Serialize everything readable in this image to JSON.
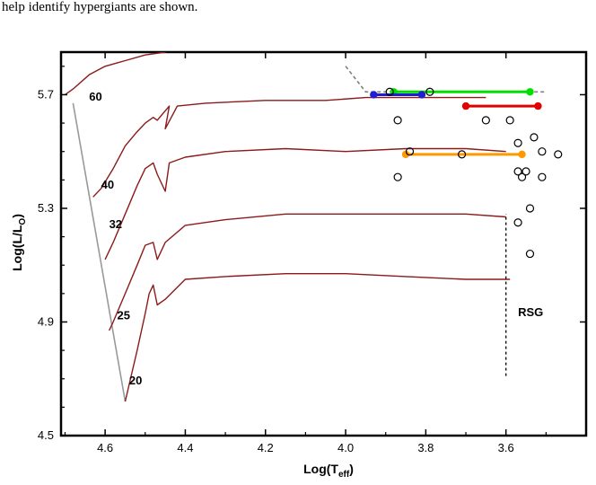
{
  "caption": "help identify hypergiants are shown.",
  "chart_data": {
    "type": "line",
    "title": "",
    "xlabel_main": "Log(T",
    "xlabel_sub": "eff",
    "xlabel_end": ")",
    "ylabel_main": "Log(L/L",
    "ylabel_sub": "O",
    "ylabel_end": ")",
    "xlim": [
      4.71,
      3.4
    ],
    "ylim": [
      4.5,
      5.85
    ],
    "x_ticks": [
      4.6,
      4.4,
      4.2,
      4.0,
      3.8,
      3.6
    ],
    "x_tick_labels": [
      "4.6",
      "4.4",
      "4.2",
      "4.0",
      "3.8",
      "3.6"
    ],
    "y_ticks": [
      4.5,
      4.9,
      5.3,
      5.7
    ],
    "y_tick_labels": [
      "4.5",
      "4.9",
      "5.3",
      "5.7"
    ],
    "track_color": "#8b1a1a",
    "zams_color": "#999999",
    "tracks": [
      {
        "mass_label": "60",
        "label_at": [
          4.64,
          5.68
        ],
        "points": [
          [
            4.7,
            5.7
          ],
          [
            4.68,
            5.72
          ],
          [
            4.64,
            5.77
          ],
          [
            4.6,
            5.8
          ],
          [
            4.55,
            5.82
          ],
          [
            4.5,
            5.84
          ],
          [
            4.45,
            5.85
          ],
          [
            4.4,
            5.87
          ],
          [
            4.39,
            5.89
          ],
          [
            4.35,
            5.88
          ],
          [
            4.25,
            5.87
          ],
          [
            4.15,
            5.86
          ],
          [
            4.08,
            5.865
          ]
        ]
      },
      {
        "mass_label": "40",
        "label_at": [
          4.61,
          5.37
        ],
        "points": [
          [
            4.63,
            5.34
          ],
          [
            4.61,
            5.37
          ],
          [
            4.58,
            5.44
          ],
          [
            4.55,
            5.52
          ],
          [
            4.52,
            5.57
          ],
          [
            4.5,
            5.6
          ],
          [
            4.48,
            5.62
          ],
          [
            4.47,
            5.61
          ],
          [
            4.44,
            5.66
          ],
          [
            4.45,
            5.58
          ],
          [
            4.42,
            5.66
          ],
          [
            4.35,
            5.67
          ],
          [
            4.2,
            5.68
          ],
          [
            4.05,
            5.68
          ],
          [
            3.95,
            5.69
          ],
          [
            3.85,
            5.69
          ],
          [
            3.7,
            5.69
          ],
          [
            3.65,
            5.69
          ]
        ]
      },
      {
        "mass_label": "32",
        "label_at": [
          4.59,
          5.23
        ],
        "points": [
          [
            4.6,
            5.12
          ],
          [
            4.58,
            5.18
          ],
          [
            4.55,
            5.28
          ],
          [
            4.52,
            5.38
          ],
          [
            4.5,
            5.44
          ],
          [
            4.48,
            5.46
          ],
          [
            4.47,
            5.42
          ],
          [
            4.45,
            5.36
          ],
          [
            4.44,
            5.46
          ],
          [
            4.4,
            5.48
          ],
          [
            4.3,
            5.5
          ],
          [
            4.15,
            5.51
          ],
          [
            4.0,
            5.5
          ],
          [
            3.85,
            5.51
          ],
          [
            3.7,
            5.51
          ],
          [
            3.6,
            5.5
          ]
        ]
      },
      {
        "mass_label": "25",
        "label_at": [
          4.57,
          4.91
        ],
        "points": [
          [
            4.59,
            4.87
          ],
          [
            4.58,
            4.9
          ],
          [
            4.55,
            5.0
          ],
          [
            4.52,
            5.1
          ],
          [
            4.5,
            5.17
          ],
          [
            4.48,
            5.18
          ],
          [
            4.47,
            5.12
          ],
          [
            4.45,
            5.18
          ],
          [
            4.4,
            5.24
          ],
          [
            4.3,
            5.26
          ],
          [
            4.15,
            5.28
          ],
          [
            4.0,
            5.28
          ],
          [
            3.85,
            5.28
          ],
          [
            3.7,
            5.28
          ],
          [
            3.6,
            5.27
          ]
        ]
      },
      {
        "mass_label": "20",
        "label_at": [
          4.54,
          4.68
        ],
        "points": [
          [
            4.55,
            4.62
          ],
          [
            4.54,
            4.68
          ],
          [
            4.52,
            4.8
          ],
          [
            4.5,
            4.93
          ],
          [
            4.49,
            5.0
          ],
          [
            4.48,
            5.03
          ],
          [
            4.47,
            4.96
          ],
          [
            4.45,
            4.98
          ],
          [
            4.4,
            5.05
          ],
          [
            4.3,
            5.06
          ],
          [
            4.15,
            5.07
          ],
          [
            4.0,
            5.07
          ],
          [
            3.85,
            5.06
          ],
          [
            3.7,
            5.05
          ],
          [
            3.59,
            5.05
          ]
        ]
      }
    ],
    "zams_line": [
      [
        4.68,
        5.67
      ],
      [
        4.55,
        4.62
      ]
    ],
    "gray_dashed_line": {
      "color": "#808080",
      "points": [
        [
          4.0,
          5.8
        ],
        [
          3.95,
          5.71
        ],
        [
          3.6,
          5.71
        ],
        [
          3.5,
          5.71
        ]
      ]
    },
    "rsg_vertical_dashed": {
      "color": "#000000",
      "x": 3.6,
      "y_from": 4.71,
      "y_to": 5.28
    },
    "rsg_label": {
      "text": "RSG",
      "at": [
        3.57,
        4.92
      ]
    },
    "segments": [
      {
        "color": "#00e000",
        "x1": 3.88,
        "x2": 3.54,
        "y": 5.71
      },
      {
        "color": "#1f1fd0",
        "x1": 3.93,
        "x2": 3.81,
        "y": 5.7
      },
      {
        "color": "#e00000",
        "x1": 3.7,
        "x2": 3.52,
        "y": 5.66
      },
      {
        "color": "#ff9900",
        "x1": 3.85,
        "x2": 3.56,
        "y": 5.49
      }
    ],
    "open_circles": [
      [
        3.89,
        5.71
      ],
      [
        3.79,
        5.71
      ],
      [
        3.87,
        5.61
      ],
      [
        3.65,
        5.61
      ],
      [
        3.59,
        5.61
      ],
      [
        3.53,
        5.55
      ],
      [
        3.57,
        5.53
      ],
      [
        3.51,
        5.5
      ],
      [
        3.47,
        5.49
      ],
      [
        3.84,
        5.5
      ],
      [
        3.71,
        5.49
      ],
      [
        3.57,
        5.43
      ],
      [
        3.55,
        5.43
      ],
      [
        3.56,
        5.41
      ],
      [
        3.51,
        5.41
      ],
      [
        3.87,
        5.41
      ],
      [
        3.54,
        5.3
      ],
      [
        3.57,
        5.25
      ],
      [
        3.54,
        5.14
      ]
    ]
  }
}
